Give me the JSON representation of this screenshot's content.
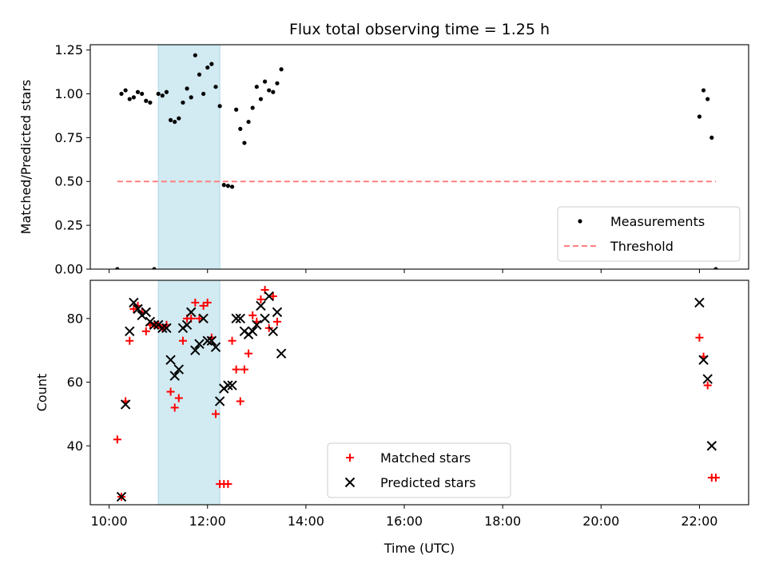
{
  "title": "Flux total observing time = 1.25 h",
  "xlabel": "Time (UTC)",
  "chart_data": [
    {
      "type": "scatter",
      "ylabel": "Matched/Predicted stars",
      "xlim": [
        "09:37",
        "23:00"
      ],
      "ylim": [
        0,
        1.28
      ],
      "yticks": [
        0.0,
        0.25,
        0.5,
        0.75,
        1.0,
        1.25
      ],
      "ytick_labels": [
        "0.00",
        "0.25",
        "0.50",
        "0.75",
        "1.00",
        "1.25"
      ],
      "highlight_span": [
        "11:00",
        "12:15"
      ],
      "threshold": {
        "name": "Threshold",
        "y": 0.5,
        "x_range": [
          "10:10",
          "22:20"
        ],
        "color": "#ff7f7f",
        "style": "dashed"
      },
      "legend": {
        "position": "lower right",
        "entries": [
          "Measurements",
          "Threshold"
        ]
      },
      "series": [
        {
          "name": "Measurements",
          "color": "#000000",
          "points": [
            [
              "10:10",
              0.0
            ],
            [
              "10:15",
              1.0
            ],
            [
              "10:20",
              1.02
            ],
            [
              "10:25",
              0.97
            ],
            [
              "10:30",
              0.98
            ],
            [
              "10:35",
              1.01
            ],
            [
              "10:40",
              1.0
            ],
            [
              "10:45",
              0.96
            ],
            [
              "10:50",
              0.95
            ],
            [
              "10:55",
              0.0
            ],
            [
              "11:00",
              1.0
            ],
            [
              "11:05",
              0.99
            ],
            [
              "11:10",
              1.01
            ],
            [
              "11:15",
              0.85
            ],
            [
              "11:20",
              0.84
            ],
            [
              "11:25",
              0.86
            ],
            [
              "11:30",
              0.95
            ],
            [
              "11:35",
              1.03
            ],
            [
              "11:40",
              0.98
            ],
            [
              "11:45",
              1.22
            ],
            [
              "11:50",
              1.11
            ],
            [
              "11:55",
              1.0
            ],
            [
              "12:00",
              1.15
            ],
            [
              "12:05",
              1.17
            ],
            [
              "12:10",
              1.04
            ],
            [
              "12:15",
              0.93
            ],
            [
              "12:20",
              0.48
            ],
            [
              "12:25",
              0.475
            ],
            [
              "12:30",
              0.47
            ],
            [
              "12:35",
              0.91
            ],
            [
              "12:40",
              0.8
            ],
            [
              "12:45",
              0.72
            ],
            [
              "12:50",
              0.84
            ],
            [
              "12:55",
              0.92
            ],
            [
              "13:00",
              1.04
            ],
            [
              "13:05",
              0.97
            ],
            [
              "13:10",
              1.07
            ],
            [
              "13:15",
              1.02
            ],
            [
              "13:20",
              1.01
            ],
            [
              "13:25",
              1.06
            ],
            [
              "13:30",
              1.14
            ],
            [
              "22:00",
              0.87
            ],
            [
              "22:05",
              1.02
            ],
            [
              "22:10",
              0.97
            ],
            [
              "22:15",
              0.75
            ],
            [
              "22:20",
              0.0
            ]
          ]
        }
      ]
    },
    {
      "type": "scatter",
      "ylabel": "Count",
      "xlim": [
        "09:37",
        "23:00"
      ],
      "ylim": [
        21.5,
        92
      ],
      "yticks": [
        40,
        60,
        80
      ],
      "ytick_labels": [
        "40",
        "60",
        "80"
      ],
      "highlight_span": [
        "11:00",
        "12:15"
      ],
      "legend": {
        "position": "lower center",
        "entries": [
          "Matched stars",
          "Predicted stars"
        ]
      },
      "series": [
        {
          "name": "Matched stars",
          "marker": "plus",
          "color": "#ff0000",
          "points": [
            [
              "10:10",
              42
            ],
            [
              "10:15",
              24
            ],
            [
              "10:20",
              54
            ],
            [
              "10:25",
              73
            ],
            [
              "10:30",
              83
            ],
            [
              "10:35",
              84
            ],
            [
              "10:40",
              82
            ],
            [
              "10:45",
              76
            ],
            [
              "10:50",
              78
            ],
            [
              "10:55",
              78
            ],
            [
              "11:00",
              78
            ],
            [
              "11:05",
              77
            ],
            [
              "11:10",
              78
            ],
            [
              "11:15",
              57
            ],
            [
              "11:20",
              52
            ],
            [
              "11:25",
              55
            ],
            [
              "11:30",
              73
            ],
            [
              "11:35",
              80
            ],
            [
              "11:40",
              80
            ],
            [
              "11:45",
              85
            ],
            [
              "11:50",
              80
            ],
            [
              "11:55",
              84
            ],
            [
              "12:00",
              85
            ],
            [
              "12:05",
              74
            ],
            [
              "12:10",
              50
            ],
            [
              "12:15",
              28
            ],
            [
              "12:20",
              28
            ],
            [
              "12:25",
              28
            ],
            [
              "12:30",
              73
            ],
            [
              "12:35",
              64
            ],
            [
              "12:40",
              54
            ],
            [
              "12:45",
              64
            ],
            [
              "12:50",
              69
            ],
            [
              "12:55",
              81
            ],
            [
              "13:00",
              79
            ],
            [
              "13:05",
              86
            ],
            [
              "13:10",
              89
            ],
            [
              "13:15",
              77
            ],
            [
              "13:20",
              87
            ],
            [
              "13:25",
              79
            ],
            [
              "22:00",
              74
            ],
            [
              "22:05",
              68
            ],
            [
              "22:10",
              59
            ],
            [
              "22:15",
              30
            ],
            [
              "22:20",
              30
            ]
          ]
        },
        {
          "name": "Predicted stars",
          "marker": "x",
          "color": "#000000",
          "points": [
            [
              "10:15",
              24
            ],
            [
              "10:20",
              53
            ],
            [
              "10:25",
              76
            ],
            [
              "10:30",
              85
            ],
            [
              "10:35",
              83
            ],
            [
              "10:40",
              81
            ],
            [
              "10:45",
              82
            ],
            [
              "10:50",
              79
            ],
            [
              "10:55",
              78
            ],
            [
              "11:00",
              78
            ],
            [
              "11:05",
              77
            ],
            [
              "11:10",
              77
            ],
            [
              "11:15",
              67
            ],
            [
              "11:20",
              62
            ],
            [
              "11:25",
              64
            ],
            [
              "11:30",
              77
            ],
            [
              "11:35",
              78
            ],
            [
              "11:40",
              82
            ],
            [
              "11:45",
              70
            ],
            [
              "11:50",
              72
            ],
            [
              "11:55",
              80
            ],
            [
              "12:00",
              73
            ],
            [
              "12:05",
              73
            ],
            [
              "12:10",
              71
            ],
            [
              "12:15",
              54
            ],
            [
              "12:20",
              58
            ],
            [
              "12:25",
              59
            ],
            [
              "12:30",
              59
            ],
            [
              "12:35",
              80
            ],
            [
              "12:40",
              80
            ],
            [
              "12:45",
              76
            ],
            [
              "12:50",
              75
            ],
            [
              "12:55",
              76
            ],
            [
              "13:00",
              78
            ],
            [
              "13:05",
              84
            ],
            [
              "13:10",
              80
            ],
            [
              "13:15",
              87
            ],
            [
              "13:20",
              76
            ],
            [
              "13:25",
              82
            ],
            [
              "13:30",
              69
            ],
            [
              "22:00",
              85
            ],
            [
              "22:05",
              67
            ],
            [
              "22:10",
              61
            ],
            [
              "22:15",
              40
            ]
          ]
        }
      ]
    }
  ],
  "xticks": [
    "10:00",
    "12:00",
    "14:00",
    "16:00",
    "18:00",
    "20:00",
    "22:00"
  ],
  "colors": {
    "highlight": "#add8e6",
    "threshold": "#ff7f7f",
    "matched": "#ff0000",
    "predicted": "#000000"
  }
}
